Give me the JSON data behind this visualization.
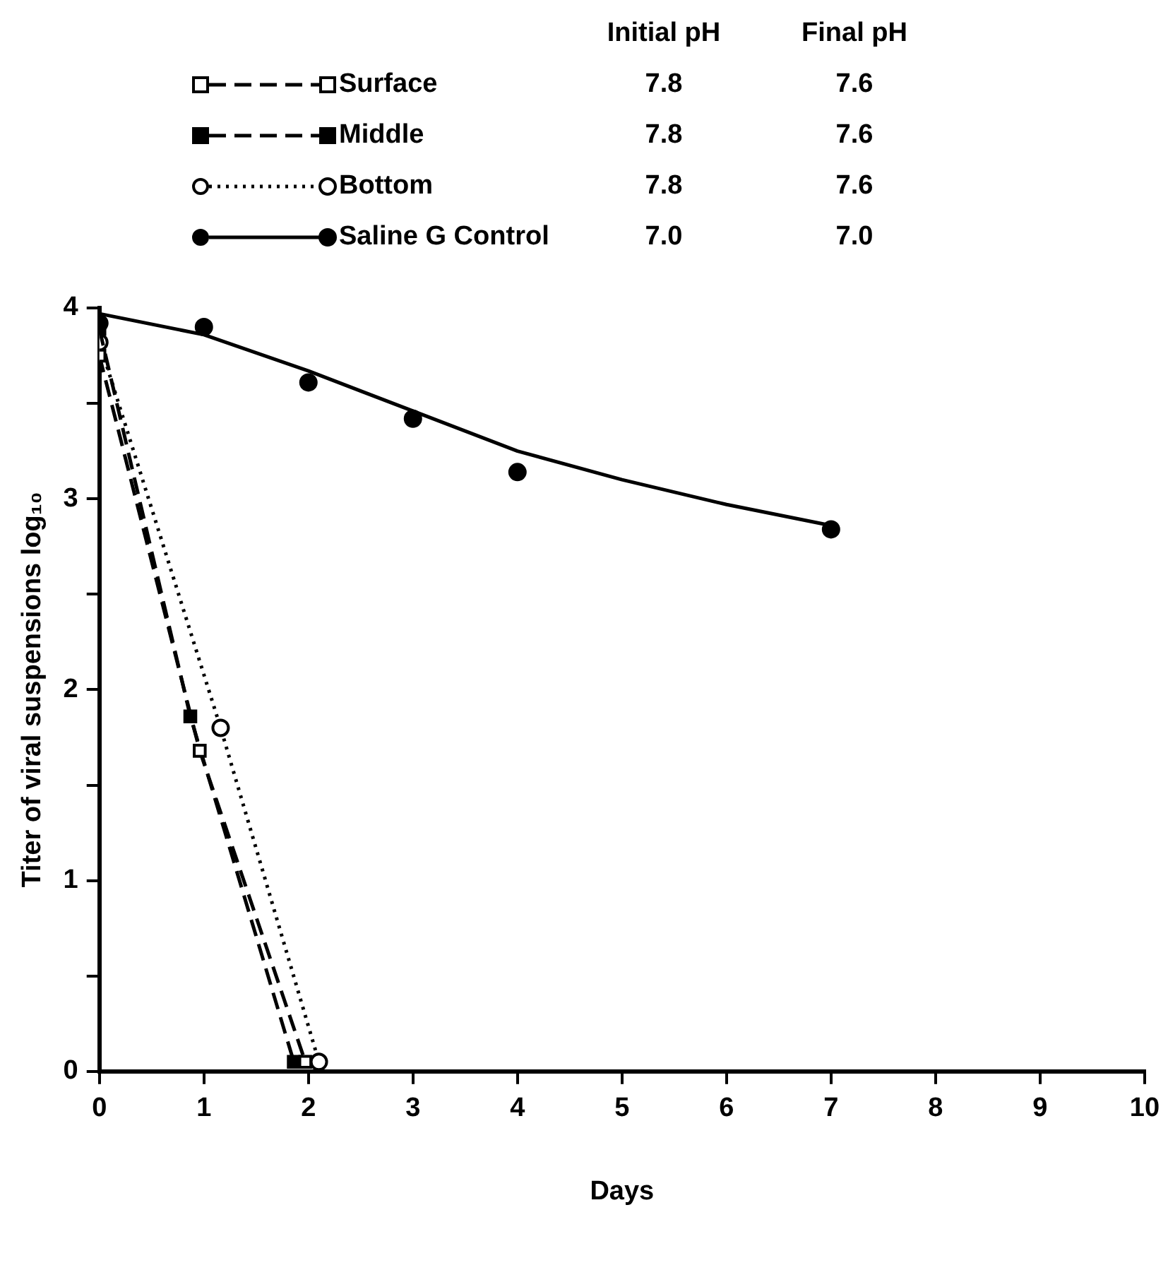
{
  "chart_data": {
    "type": "line",
    "xlabel": "Days",
    "ylabel": "Titer of viral suspensions log₁₀",
    "xlim": [
      0,
      10
    ],
    "xticks": [
      0,
      1,
      2,
      3,
      4,
      5,
      6,
      7,
      8,
      9,
      10
    ],
    "ylim": [
      0,
      4
    ],
    "yticks": [
      0,
      {
        "value": 0.5,
        "label": null
      },
      1,
      {
        "value": 1.5,
        "label": null
      },
      2,
      {
        "value": 2.5,
        "label": null
      },
      3,
      {
        "value": 3.5,
        "label": null
      },
      4
    ],
    "grid": false,
    "legend": "top",
    "legend_title": "Initial pH",
    "annotations": [
      "Final pH",
      "7.8",
      "7.6",
      "7.8",
      "7.6",
      "7.8",
      "7.6",
      "7.0",
      "7.0"
    ],
    "series": [
      {
        "name": "Surface",
        "color": "#000000",
        "marker": "square",
        "line_style": "dashed",
        "x": [
          0,
          0.96,
          1.97
        ],
        "values": [
          3.75,
          1.68,
          0.05
        ]
      },
      {
        "name": "Middle",
        "color": "#000000",
        "marker": "square",
        "line_style": "dashed",
        "x": [
          0,
          0.87,
          1.86
        ],
        "values": [
          3.89,
          1.86,
          0.05
        ]
      },
      {
        "name": "Bottom",
        "color": "#000000",
        "marker": "circle",
        "line_style": "dotted",
        "x": [
          0,
          1.16,
          2.1
        ],
        "values": [
          3.82,
          1.8,
          0.05
        ]
      },
      {
        "name": "Saline G Control",
        "type": "scatter",
        "color": "#000000",
        "marker": "circle",
        "x": [
          0,
          1,
          2,
          3,
          4,
          7
        ],
        "values": [
          3.92,
          3.9,
          3.61,
          3.42,
          3.14,
          2.84
        ]
      },
      {
        "type": "line",
        "color": "#000000",
        "marker": "none",
        "line_style": "solid",
        "x": [
          0,
          1,
          2,
          3,
          4,
          5,
          6,
          7
        ],
        "values": [
          3.97,
          3.86,
          3.67,
          3.46,
          3.25,
          3.1,
          2.97,
          2.86
        ]
      }
    ]
  }
}
